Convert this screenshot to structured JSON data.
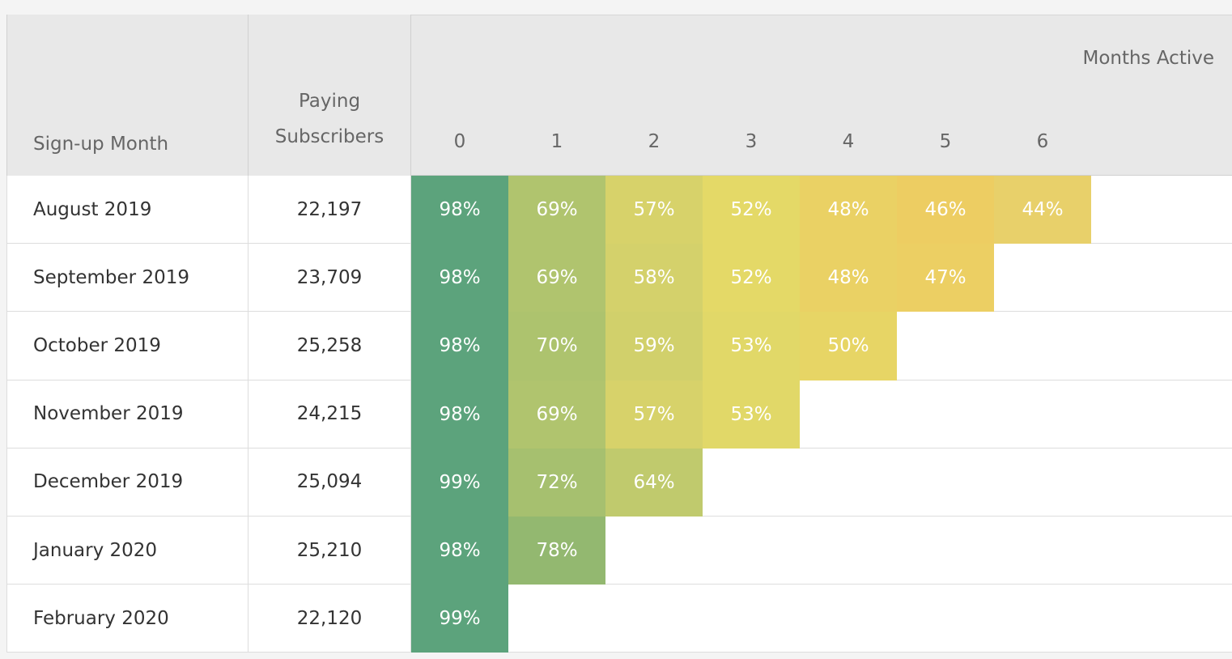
{
  "header": {
    "sign_up": "Sign-up Month",
    "subscribers": "Paying Subscribers",
    "months_active": "Months Active",
    "months": [
      0,
      1,
      2,
      3,
      4,
      5,
      6
    ]
  },
  "table": {
    "rows": [
      {
        "month": "August 2019",
        "subscribers": "22,197",
        "retention": [
          {
            "value": 98,
            "label": "98%"
          },
          {
            "value": 69,
            "label": "69%"
          },
          {
            "value": 57,
            "label": "57%"
          },
          {
            "value": 52,
            "label": "52%"
          },
          {
            "value": 48,
            "label": "48%"
          },
          {
            "value": 46,
            "label": "46%"
          },
          {
            "value": 44,
            "label": "44%"
          }
        ]
      },
      {
        "month": "September 2019",
        "subscribers": "23,709",
        "retention": [
          {
            "value": 98,
            "label": "98%"
          },
          {
            "value": 69,
            "label": "69%"
          },
          {
            "value": 58,
            "label": "58%"
          },
          {
            "value": 52,
            "label": "52%"
          },
          {
            "value": 48,
            "label": "48%"
          },
          {
            "value": 47,
            "label": "47%"
          }
        ]
      },
      {
        "month": "October 2019",
        "subscribers": "25,258",
        "retention": [
          {
            "value": 98,
            "label": "98%"
          },
          {
            "value": 70,
            "label": "70%"
          },
          {
            "value": 59,
            "label": "59%"
          },
          {
            "value": 53,
            "label": "53%"
          },
          {
            "value": 50,
            "label": "50%"
          }
        ]
      },
      {
        "month": "November 2019",
        "subscribers": "24,215",
        "retention": [
          {
            "value": 98,
            "label": "98%"
          },
          {
            "value": 69,
            "label": "69%"
          },
          {
            "value": 57,
            "label": "57%"
          },
          {
            "value": 53,
            "label": "53%"
          }
        ]
      },
      {
        "month": "December 2019",
        "subscribers": "25,094",
        "retention": [
          {
            "value": 99,
            "label": "99%"
          },
          {
            "value": 72,
            "label": "72%"
          },
          {
            "value": 64,
            "label": "64%"
          }
        ]
      },
      {
        "month": "January 2020",
        "subscribers": "25,210",
        "retention": [
          {
            "value": 98,
            "label": "98%"
          },
          {
            "value": 78,
            "label": "78%"
          }
        ]
      },
      {
        "month": "February 2020",
        "subscribers": "22,120",
        "retention": [
          {
            "value": 99,
            "label": "99%"
          }
        ]
      }
    ]
  },
  "color_scale": [
    {
      "value": 44,
      "color": "#e8d06a"
    },
    {
      "value": 46,
      "color": "#edcd62"
    },
    {
      "value": 52,
      "color": "#e4d967"
    },
    {
      "value": 58,
      "color": "#d4d16b"
    },
    {
      "value": 69,
      "color": "#b0c46e"
    },
    {
      "value": 78,
      "color": "#93b870"
    },
    {
      "value": 98,
      "color": "#5ca37c"
    }
  ]
}
